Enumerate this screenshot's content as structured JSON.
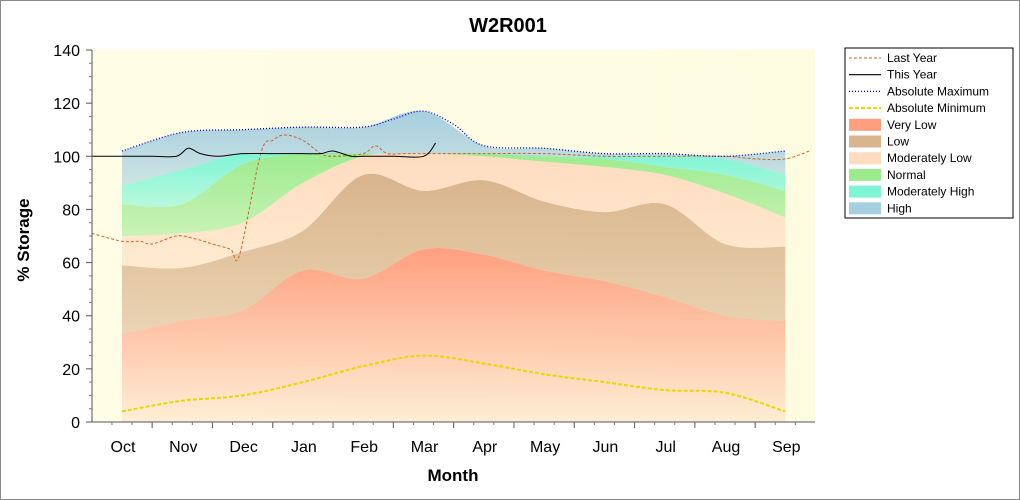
{
  "chart_data": {
    "type": "area",
    "title": "W2R001",
    "xlabel": "Month",
    "ylabel": "% Storage",
    "ylim": [
      0,
      140
    ],
    "yticks": [
      0,
      20,
      40,
      60,
      80,
      100,
      120,
      140
    ],
    "categories": [
      "Oct",
      "Nov",
      "Dec",
      "Jan",
      "Feb",
      "Mar",
      "Apr",
      "May",
      "Jun",
      "Jul",
      "Aug",
      "Sep"
    ],
    "grid": false,
    "legend_position": "right",
    "background": {
      "gradient_start": "#fffde6",
      "gradient_end": "#fdfbe0"
    },
    "bands": [
      {
        "name": "Very Low",
        "color": "#ff9f7f",
        "lower": [
          0,
          0,
          0,
          0,
          0,
          0,
          0,
          0,
          0,
          0,
          0,
          0
        ],
        "upper": [
          33,
          38,
          42,
          57,
          54,
          65,
          63,
          57,
          53,
          47,
          40,
          38
        ]
      },
      {
        "name": "Low",
        "color": "#d9b48c",
        "lower": [
          33,
          38,
          42,
          57,
          54,
          65,
          63,
          57,
          53,
          47,
          40,
          38
        ],
        "upper": [
          59,
          58,
          64,
          72,
          93,
          87,
          91,
          83,
          79,
          82,
          67,
          66
        ]
      },
      {
        "name": "Moderately Low",
        "color": "#ffdcc0",
        "lower": [
          59,
          58,
          64,
          72,
          93,
          87,
          91,
          83,
          79,
          82,
          67,
          66
        ],
        "upper": [
          70,
          71,
          75,
          90,
          100,
          101,
          100,
          98,
          96,
          93,
          86,
          77
        ]
      },
      {
        "name": "Normal",
        "color": "#9deb8f",
        "lower": [
          70,
          71,
          75,
          90,
          100,
          101,
          100,
          98,
          96,
          93,
          86,
          77
        ],
        "upper": [
          82,
          82,
          97,
          101,
          101,
          101,
          101,
          100,
          99,
          96,
          93,
          87
        ]
      },
      {
        "name": "Moderately High",
        "color": "#7ff5d6",
        "lower": [
          82,
          82,
          97,
          101,
          101,
          101,
          101,
          100,
          99,
          96,
          93,
          87
        ],
        "upper": [
          89,
          95,
          101,
          101,
          101,
          101,
          101,
          100,
          100,
          100,
          99,
          93
        ]
      },
      {
        "name": "High",
        "color": "#a6cfe0",
        "lower": [
          89,
          95,
          101,
          101,
          101,
          101,
          101,
          100,
          100,
          100,
          99,
          93
        ],
        "upper": [
          102,
          109,
          110,
          111,
          111,
          117,
          104,
          103,
          101,
          101,
          100,
          102
        ]
      }
    ],
    "lines": [
      {
        "name": "Last Year",
        "color": "#cc6622",
        "dash": "3,2",
        "width": 1,
        "x": [
          -0.5,
          0,
          0.3,
          0.5,
          0.9,
          1.2,
          1.5,
          1.8,
          1.95,
          2.3,
          2.5,
          2.7,
          3.0,
          3.3,
          3.5,
          4.0,
          4.2,
          4.4,
          4.7,
          5.0,
          5.5,
          6.0,
          7.0,
          8.0,
          9.0,
          10.0,
          10.5,
          11.0,
          11.4
        ],
        "y": [
          71,
          68,
          68,
          67,
          70,
          69,
          67,
          65,
          63,
          101,
          106,
          108,
          106,
          101,
          100,
          101,
          104,
          101,
          101,
          101,
          101,
          101,
          101,
          100,
          100,
          100,
          99,
          99,
          102
        ]
      },
      {
        "name": "This Year",
        "color": "#000000",
        "dash": "",
        "width": 1,
        "x": [
          -0.5,
          0,
          0.5,
          0.9,
          1.1,
          1.3,
          1.6,
          2.0,
          2.5,
          3.0,
          3.3,
          3.5,
          3.8,
          4.0,
          4.5,
          5.0,
          5.2
        ],
        "y": [
          100,
          100,
          100,
          100,
          103,
          101,
          100,
          101,
          101,
          101,
          101,
          102,
          100,
          100,
          100,
          100,
          105
        ]
      },
      {
        "name": "Absolute Maximum",
        "color": "#0000cc",
        "dash": "1,2",
        "width": 1.3,
        "x": [
          0,
          1,
          2,
          3,
          4,
          4.5,
          5,
          5.5,
          6,
          7,
          8,
          9,
          10,
          11
        ],
        "y": [
          102,
          109,
          110,
          111,
          111,
          114,
          117,
          112,
          104,
          103,
          101,
          101,
          100,
          102
        ]
      },
      {
        "name": "Absolute Minimum",
        "color": "#e6d800",
        "dash": "4,2",
        "width": 2,
        "x": [
          0,
          1,
          2,
          3,
          4,
          5,
          6,
          7,
          8,
          9,
          10,
          11
        ],
        "y": [
          4,
          8,
          10,
          15,
          21,
          25,
          22,
          18,
          15,
          12,
          11,
          4
        ]
      }
    ],
    "legend": [
      {
        "name": "Last Year",
        "kind": "line",
        "color": "#cc6622",
        "dash": "3,2",
        "width": 1
      },
      {
        "name": "This Year",
        "kind": "line",
        "color": "#000000",
        "dash": "",
        "width": 1.2
      },
      {
        "name": "Absolute Maximum",
        "kind": "line",
        "color": "#0000cc",
        "dash": "1,2",
        "width": 1.3
      },
      {
        "name": "Absolute Minimum",
        "kind": "line",
        "color": "#e6d800",
        "dash": "4,2",
        "width": 2
      },
      {
        "name": "Very Low",
        "kind": "band",
        "color": "#ff9f7f"
      },
      {
        "name": "Low",
        "kind": "band",
        "color": "#d9b48c"
      },
      {
        "name": "Moderately Low",
        "kind": "band",
        "color": "#ffdcc0"
      },
      {
        "name": "Normal",
        "kind": "band",
        "color": "#9deb8f"
      },
      {
        "name": "Moderately High",
        "kind": "band",
        "color": "#7ff5d6"
      },
      {
        "name": "High",
        "kind": "band",
        "color": "#a6cfe0"
      }
    ]
  }
}
